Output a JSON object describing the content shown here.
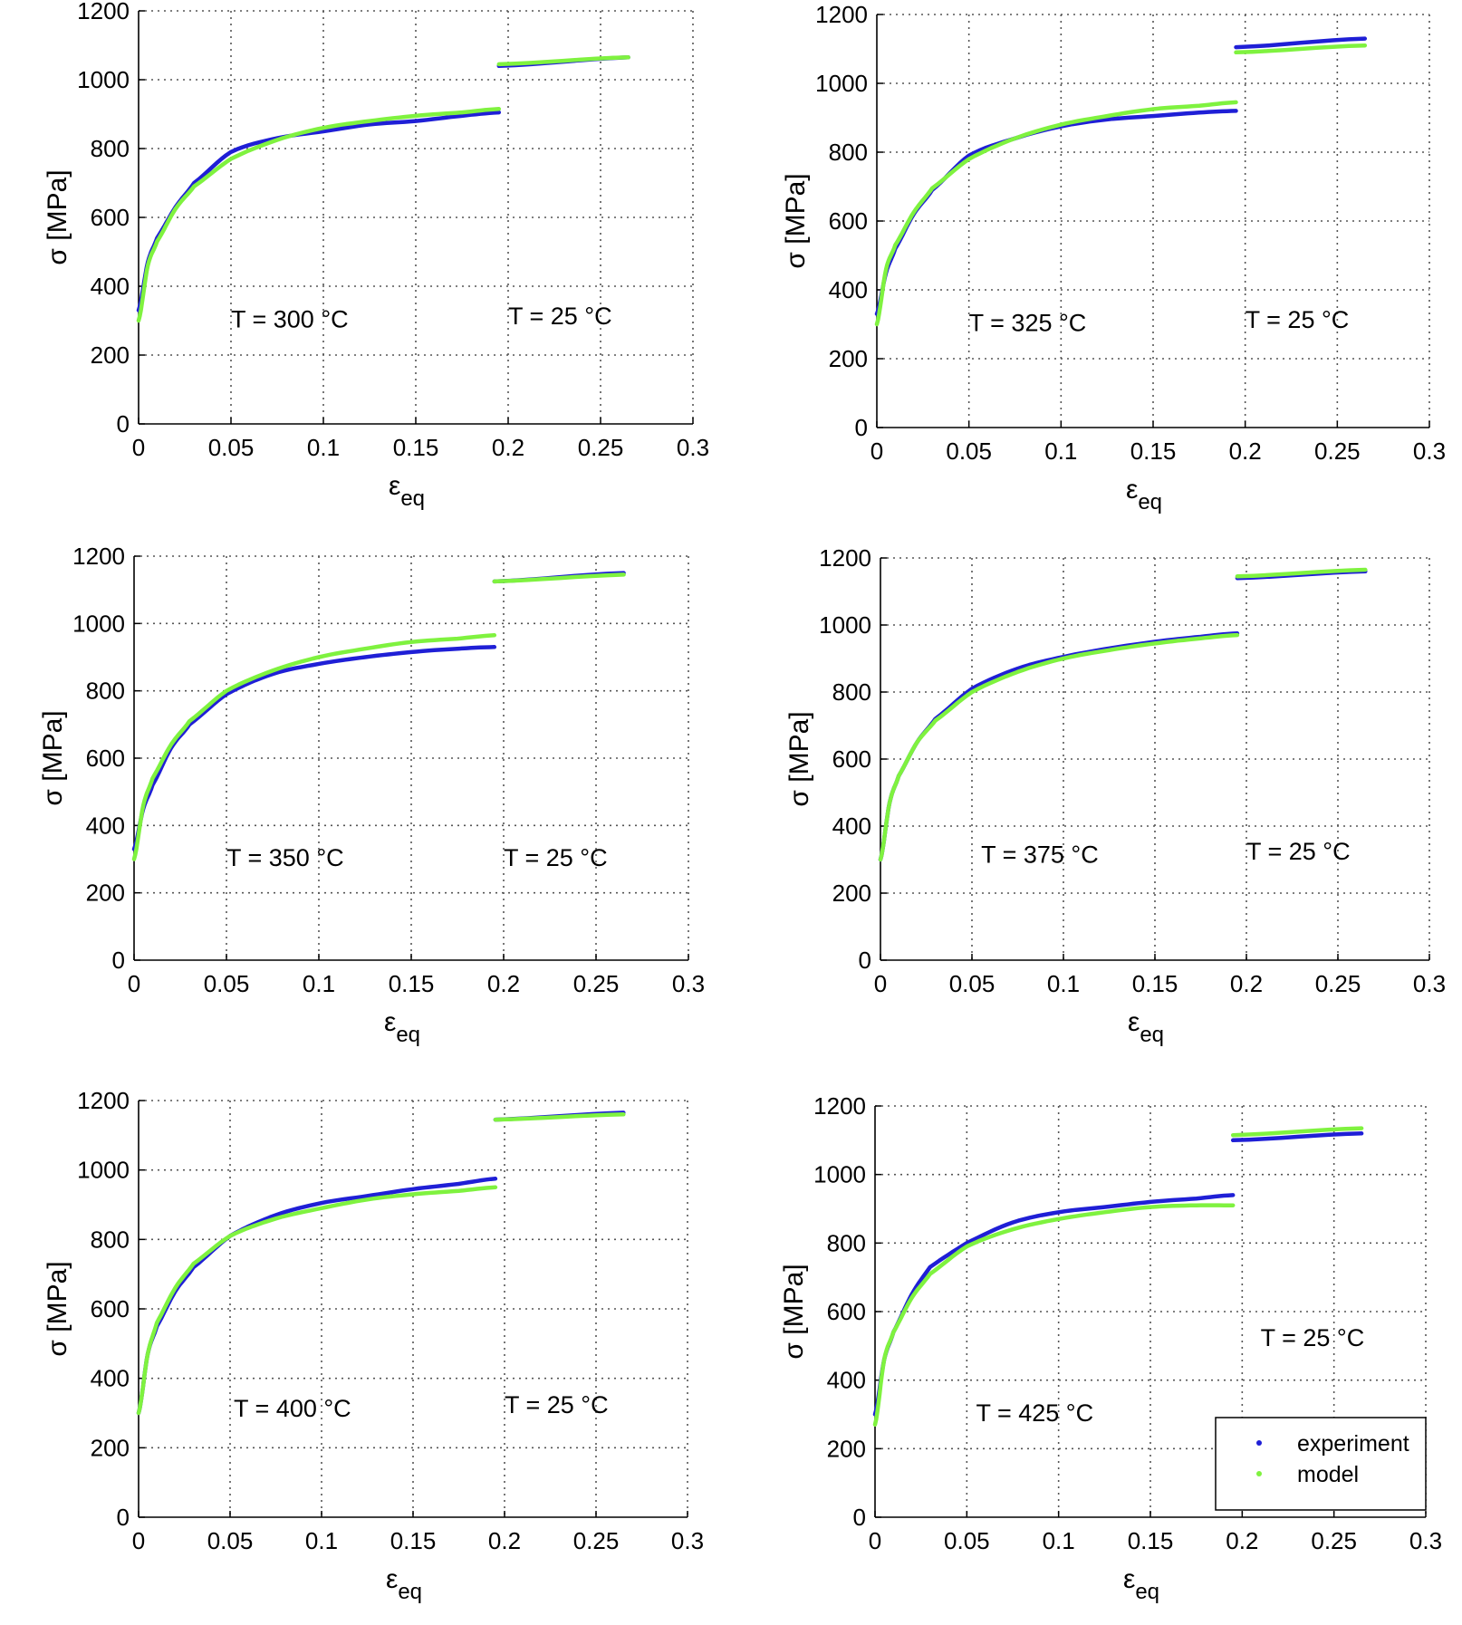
{
  "figure": {
    "legend": [
      {
        "label": "experiment",
        "color": "#1f1fd6"
      },
      {
        "label": "model",
        "color": "#7ff23f"
      }
    ]
  },
  "colors": {
    "experiment": "#1f1fd6",
    "model": "#7ff23f",
    "grid": "#555555"
  },
  "chart_data": [
    {
      "type": "scatter",
      "xlabel": "εeq",
      "ylabel": "σ  [MPa]",
      "xlim": [
        0,
        0.3
      ],
      "ylim": [
        0,
        1200
      ],
      "xticks": [
        "0",
        "0.05",
        "0.1",
        "0.15",
        "0.2",
        "0.25",
        "0.3"
      ],
      "yticks": [
        "0",
        "200",
        "400",
        "600",
        "800",
        "1000",
        "1200"
      ],
      "grid": true,
      "annotations": [
        "T = 300 °C",
        "T = 25 °C"
      ],
      "warm": {
        "x": [
          0,
          0.005,
          0.01,
          0.02,
          0.03,
          0.05,
          0.075,
          0.1,
          0.125,
          0.15,
          0.175,
          0.195
        ],
        "experiment": [
          330,
          470,
          540,
          630,
          700,
          790,
          830,
          850,
          870,
          880,
          895,
          905
        ],
        "model": [
          300,
          460,
          530,
          625,
          690,
          770,
          825,
          860,
          880,
          895,
          905,
          915
        ]
      },
      "cold": {
        "x": [
          0.195,
          0.265
        ],
        "experiment": [
          1040,
          1065
        ],
        "model": [
          1045,
          1065
        ]
      },
      "annot_pos": [
        [
          0.05,
          280,
          "start"
        ],
        [
          0.2,
          290,
          "start"
        ]
      ]
    },
    {
      "type": "scatter",
      "xlabel": "εeq",
      "ylabel": "σ  [MPa]",
      "xlim": [
        0,
        0.3
      ],
      "ylim": [
        0,
        1200
      ],
      "xticks": [
        "0",
        "0.05",
        "0.1",
        "0.15",
        "0.2",
        "0.25",
        "0.3"
      ],
      "yticks": [
        "0",
        "200",
        "400",
        "600",
        "800",
        "1000",
        "1200"
      ],
      "grid": true,
      "annotations": [
        "T = 325 °C",
        "T = 25 °C"
      ],
      "warm": {
        "x": [
          0,
          0.005,
          0.01,
          0.02,
          0.03,
          0.05,
          0.075,
          0.1,
          0.125,
          0.15,
          0.175,
          0.195
        ],
        "experiment": [
          330,
          450,
          520,
          620,
          690,
          790,
          840,
          875,
          895,
          905,
          915,
          920
        ],
        "model": [
          300,
          460,
          530,
          625,
          695,
          780,
          840,
          880,
          905,
          925,
          935,
          945
        ]
      },
      "cold": {
        "x": [
          0.195,
          0.265
        ],
        "experiment": [
          1105,
          1130
        ],
        "model": [
          1090,
          1110
        ]
      },
      "annot_pos": [
        [
          0.05,
          280,
          "start"
        ],
        [
          0.2,
          290,
          "start"
        ]
      ]
    },
    {
      "type": "scatter",
      "xlabel": "εeq",
      "ylabel": "σ  [MPa]",
      "xlim": [
        0,
        0.3
      ],
      "ylim": [
        0,
        1200
      ],
      "xticks": [
        "0",
        "0.05",
        "0.1",
        "0.15",
        "0.2",
        "0.25",
        "0.3"
      ],
      "yticks": [
        "0",
        "200",
        "400",
        "600",
        "800",
        "1000",
        "1200"
      ],
      "grid": true,
      "annotations": [
        "T = 350 °C",
        "T = 25 °C"
      ],
      "warm": {
        "x": [
          0,
          0.005,
          0.01,
          0.02,
          0.03,
          0.05,
          0.075,
          0.1,
          0.125,
          0.15,
          0.175,
          0.195
        ],
        "experiment": [
          330,
          450,
          520,
          630,
          700,
          790,
          850,
          880,
          900,
          915,
          925,
          930
        ],
        "model": [
          300,
          460,
          540,
          640,
          710,
          800,
          860,
          900,
          925,
          945,
          955,
          965
        ]
      },
      "cold": {
        "x": [
          0.195,
          0.265
        ],
        "experiment": [
          1125,
          1150
        ],
        "model": [
          1125,
          1145
        ]
      },
      "annot_pos": [
        [
          0.05,
          280,
          "start"
        ],
        [
          0.2,
          280,
          "start"
        ]
      ]
    },
    {
      "type": "scatter",
      "xlabel": "εeq",
      "ylabel": "σ  [MPa]",
      "xlim": [
        0,
        0.3
      ],
      "ylim": [
        0,
        1200
      ],
      "xticks": [
        "0",
        "0.05",
        "0.1",
        "0.15",
        "0.2",
        "0.25",
        "0.3"
      ],
      "yticks": [
        "0",
        "200",
        "400",
        "600",
        "800",
        "1000",
        "1200"
      ],
      "grid": true,
      "annotations": [
        "T = 375 °C",
        "T = 25 °C"
      ],
      "warm": {
        "x": [
          0,
          0.005,
          0.01,
          0.02,
          0.03,
          0.05,
          0.075,
          0.1,
          0.125,
          0.15,
          0.175,
          0.195
        ],
        "experiment": [
          300,
          470,
          550,
          650,
          720,
          810,
          870,
          905,
          930,
          950,
          965,
          975
        ],
        "model": [
          300,
          470,
          550,
          650,
          715,
          800,
          860,
          900,
          925,
          945,
          960,
          970
        ]
      },
      "cold": {
        "x": [
          0.195,
          0.265
        ],
        "experiment": [
          1140,
          1160
        ],
        "model": [
          1145,
          1165
        ]
      },
      "annot_pos": [
        [
          0.055,
          290,
          "start"
        ],
        [
          0.2,
          300,
          "start"
        ]
      ]
    },
    {
      "type": "scatter",
      "xlabel": "εeq",
      "ylabel": "σ  [MPa]",
      "xlim": [
        0,
        0.3
      ],
      "ylim": [
        0,
        1200
      ],
      "xticks": [
        "0",
        "0.05",
        "0.1",
        "0.15",
        "0.2",
        "0.25",
        "0.3"
      ],
      "yticks": [
        "0",
        "200",
        "400",
        "600",
        "800",
        "1000",
        "1200"
      ],
      "grid": true,
      "annotations": [
        "T = 400 °C",
        "T = 25 °C"
      ],
      "warm": {
        "x": [
          0,
          0.005,
          0.01,
          0.02,
          0.03,
          0.05,
          0.075,
          0.1,
          0.125,
          0.15,
          0.175,
          0.195
        ],
        "experiment": [
          300,
          470,
          550,
          650,
          720,
          810,
          870,
          905,
          925,
          945,
          960,
          975
        ],
        "model": [
          300,
          470,
          560,
          660,
          730,
          810,
          860,
          890,
          915,
          930,
          940,
          950
        ]
      },
      "cold": {
        "x": [
          0.195,
          0.265
        ],
        "experiment": [
          1145,
          1165
        ],
        "model": [
          1145,
          1160
        ]
      },
      "annot_pos": [
        [
          0.052,
          290,
          "start"
        ],
        [
          0.2,
          300,
          "start"
        ]
      ]
    },
    {
      "type": "scatter",
      "xlabel": "εeq",
      "ylabel": "σ  [MPa]",
      "xlim": [
        0,
        0.3
      ],
      "ylim": [
        0,
        1200
      ],
      "xticks": [
        "0",
        "0.05",
        "0.1",
        "0.15",
        "0.2",
        "0.25",
        "0.3"
      ],
      "yticks": [
        "0",
        "200",
        "400",
        "600",
        "800",
        "1000",
        "1200"
      ],
      "grid": true,
      "annotations": [
        "T = 425 °C",
        "T = 25 °C"
      ],
      "warm": {
        "x": [
          0,
          0.005,
          0.01,
          0.02,
          0.03,
          0.05,
          0.075,
          0.1,
          0.125,
          0.15,
          0.175,
          0.195
        ],
        "experiment": [
          300,
          460,
          540,
          650,
          730,
          800,
          860,
          890,
          905,
          920,
          930,
          940
        ],
        "model": [
          270,
          460,
          540,
          640,
          710,
          790,
          840,
          870,
          890,
          905,
          910,
          910
        ]
      },
      "cold": {
        "x": [
          0.195,
          0.265
        ],
        "experiment": [
          1100,
          1120
        ],
        "model": [
          1115,
          1135
        ]
      },
      "annot_pos": [
        [
          0.055,
          280,
          "start"
        ],
        [
          0.21,
          500,
          "start"
        ]
      ],
      "show_legend": true
    }
  ]
}
